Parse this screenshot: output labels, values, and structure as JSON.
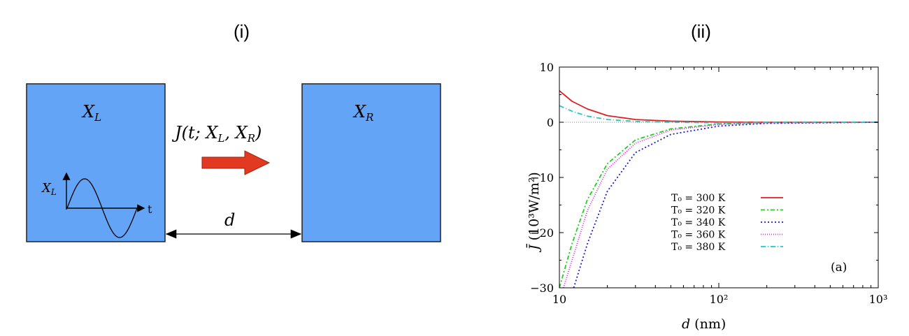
{
  "panel_i": {
    "label": "(i)",
    "left_block_label": "X",
    "left_block_sub": "L",
    "right_block_label": "X",
    "right_block_sub": "R",
    "flux_label": "J(t; X",
    "flux_sub_l": "L",
    "flux_mid": ", X",
    "flux_sub_r": "R",
    "flux_end": ")",
    "wave_axis_y": "X",
    "wave_axis_y_sub": "L",
    "wave_axis_x": "t",
    "gap_label": "d",
    "block_color": "#64a4f6",
    "arrow_color": "#e23a22"
  },
  "panel_ii": {
    "label": "(ii)",
    "annotation": "(a)"
  },
  "chart_data": {
    "type": "line",
    "xscale": "log",
    "xlim": [
      10,
      1000
    ],
    "ylim": [
      -30,
      10
    ],
    "xlabel_var": "d",
    "xlabel_unit": "(nm)",
    "ylabel_var": "J̄",
    "ylabel_unit": "(10³W/m²)",
    "x_ticks": [
      {
        "value": 10,
        "label": "10"
      },
      {
        "value": 100,
        "label": "10²"
      },
      {
        "value": 1000,
        "label": "10³"
      }
    ],
    "y_ticks": [
      {
        "value": 10,
        "label": "10"
      },
      {
        "value": 0,
        "label": "0"
      },
      {
        "value": -10,
        "label": "−10"
      },
      {
        "value": -20,
        "label": "−20"
      },
      {
        "value": -30,
        "label": "−30"
      }
    ],
    "legend_position": "center",
    "series": [
      {
        "name": "T₀ = 300 K",
        "color": "#e02020",
        "dash": "",
        "x": [
          10,
          12,
          15,
          20,
          30,
          50,
          100,
          200,
          1000
        ],
        "y": [
          5.7,
          3.8,
          2.4,
          1.2,
          0.5,
          0.2,
          0.05,
          0.0,
          0.0
        ]
      },
      {
        "name": "T₀ = 320 K",
        "color": "#22cc22",
        "dash": "6,3,2,3",
        "x": [
          10,
          12,
          15,
          20,
          30,
          50,
          100,
          200,
          1000
        ],
        "y": [
          -30,
          -22,
          -14,
          -7.5,
          -3.2,
          -1.2,
          -0.3,
          -0.05,
          0.0
        ]
      },
      {
        "name": "T₀ = 340 K",
        "color": "#1c1ccc",
        "dash": "2,3",
        "x": [
          12.3,
          15,
          20,
          30,
          50,
          100,
          200,
          1000
        ],
        "y": [
          -30,
          -22,
          -12.5,
          -5.5,
          -2.2,
          -0.7,
          -0.2,
          0.0
        ]
      },
      {
        "name": "T₀ = 360 K",
        "color": "#dd22dd",
        "dash": "1,2",
        "x": [
          10.6,
          12,
          15,
          20,
          30,
          50,
          100,
          200,
          1000
        ],
        "y": [
          -30,
          -25,
          -16,
          -8.5,
          -3.8,
          -1.4,
          -0.4,
          -0.1,
          0.0
        ]
      },
      {
        "name": "T₀ = 380 K",
        "color": "#22c8c8",
        "dash": "7,3,1,3",
        "x": [
          10,
          12,
          15,
          20,
          30,
          50,
          100,
          200,
          1000
        ],
        "y": [
          3.0,
          2.0,
          1.1,
          0.5,
          0.15,
          0.0,
          -0.1,
          -0.02,
          0.0
        ]
      }
    ]
  }
}
